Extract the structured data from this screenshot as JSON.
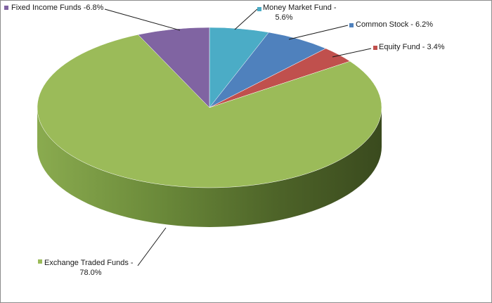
{
  "chart_data": {
    "type": "pie",
    "three_d": true,
    "legend": "none",
    "start_angle_deg": -90,
    "direction": "clockwise",
    "slices": [
      {
        "name": "Money Market Fund",
        "label_lines": [
          "Money Market Fund -",
          "5.6%"
        ],
        "value": 5.6,
        "color": "#4bacc6",
        "side_color": "#2e7d93"
      },
      {
        "name": "Common Stock",
        "label_lines": [
          "Common Stock - 6.2%"
        ],
        "value": 6.2,
        "color": "#4f81bd",
        "side_color": "#30558a"
      },
      {
        "name": "Equity Fund",
        "label_lines": [
          "Equity Fund - 3.4%"
        ],
        "value": 3.4,
        "color": "#c0504d",
        "side_color": "#8a3230"
      },
      {
        "name": "Exchange Traded Funds",
        "label_lines": [
          "Exchange Traded Funds -",
          "78.0%"
        ],
        "value": 78.0,
        "color": "#9bbb59",
        "side_color": "#5b7530",
        "side_dark": "#3a4a1e"
      },
      {
        "name": "Fixed Income Funds",
        "label_lines": [
          "Fixed Income Funds -6.8%"
        ],
        "value": 6.8,
        "color": "#8064a2",
        "side_color": "#5a4477"
      }
    ]
  }
}
